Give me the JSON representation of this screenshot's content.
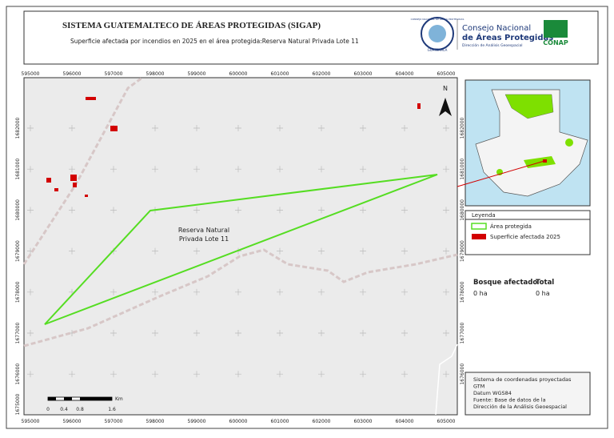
{
  "header": {
    "title": "SISTEMA GUATEMALTECO DE ÁREAS PROTEGIDAS  (SIGAP)",
    "subtitle": "Superficie afectada por incendios en 2025 en el área protegida:Reserva Natural Privada Lote 11",
    "logo_top": "CONSEJO NACIONAL DE ÁREAS PROTEGIDAS",
    "logo_country": "GUATEMALA",
    "org_line1": "Consejo Nacional",
    "org_line2": "de Áreas Protegidas",
    "org_line3": "Dirección de Análisis Geoespacial",
    "conap": "CONAP"
  },
  "grid": {
    "x_labels": [
      595000,
      596000,
      597000,
      598000,
      599000,
      600000,
      601000,
      602000,
      603000,
      604000,
      605000
    ],
    "y_labels": [
      1682000,
      1681000,
      1680000,
      1679000,
      1678000,
      1677000,
      1676000,
      1675000
    ]
  },
  "map": {
    "area_label_1": "Reserva Natural",
    "area_label_2": "Privada Lote 11",
    "north": "N",
    "scale_labels": [
      "0",
      "0.4",
      "0.8",
      "1.6"
    ],
    "scale_unit": "Km"
  },
  "legend": {
    "title": "Leyenda",
    "items": [
      "Área protegida",
      "Superficie afectada 2025"
    ]
  },
  "stats": {
    "headers": [
      "Bosque afectado",
      "Total"
    ],
    "values": [
      "0 ha",
      "0 ha"
    ]
  },
  "info": [
    "Sistema de coordenadas proyectadas",
    "GTM",
    "Datum WGS84",
    "Fuente: Base de datos de la",
    "Dirección de la Análisis Geoespacial"
  ]
}
